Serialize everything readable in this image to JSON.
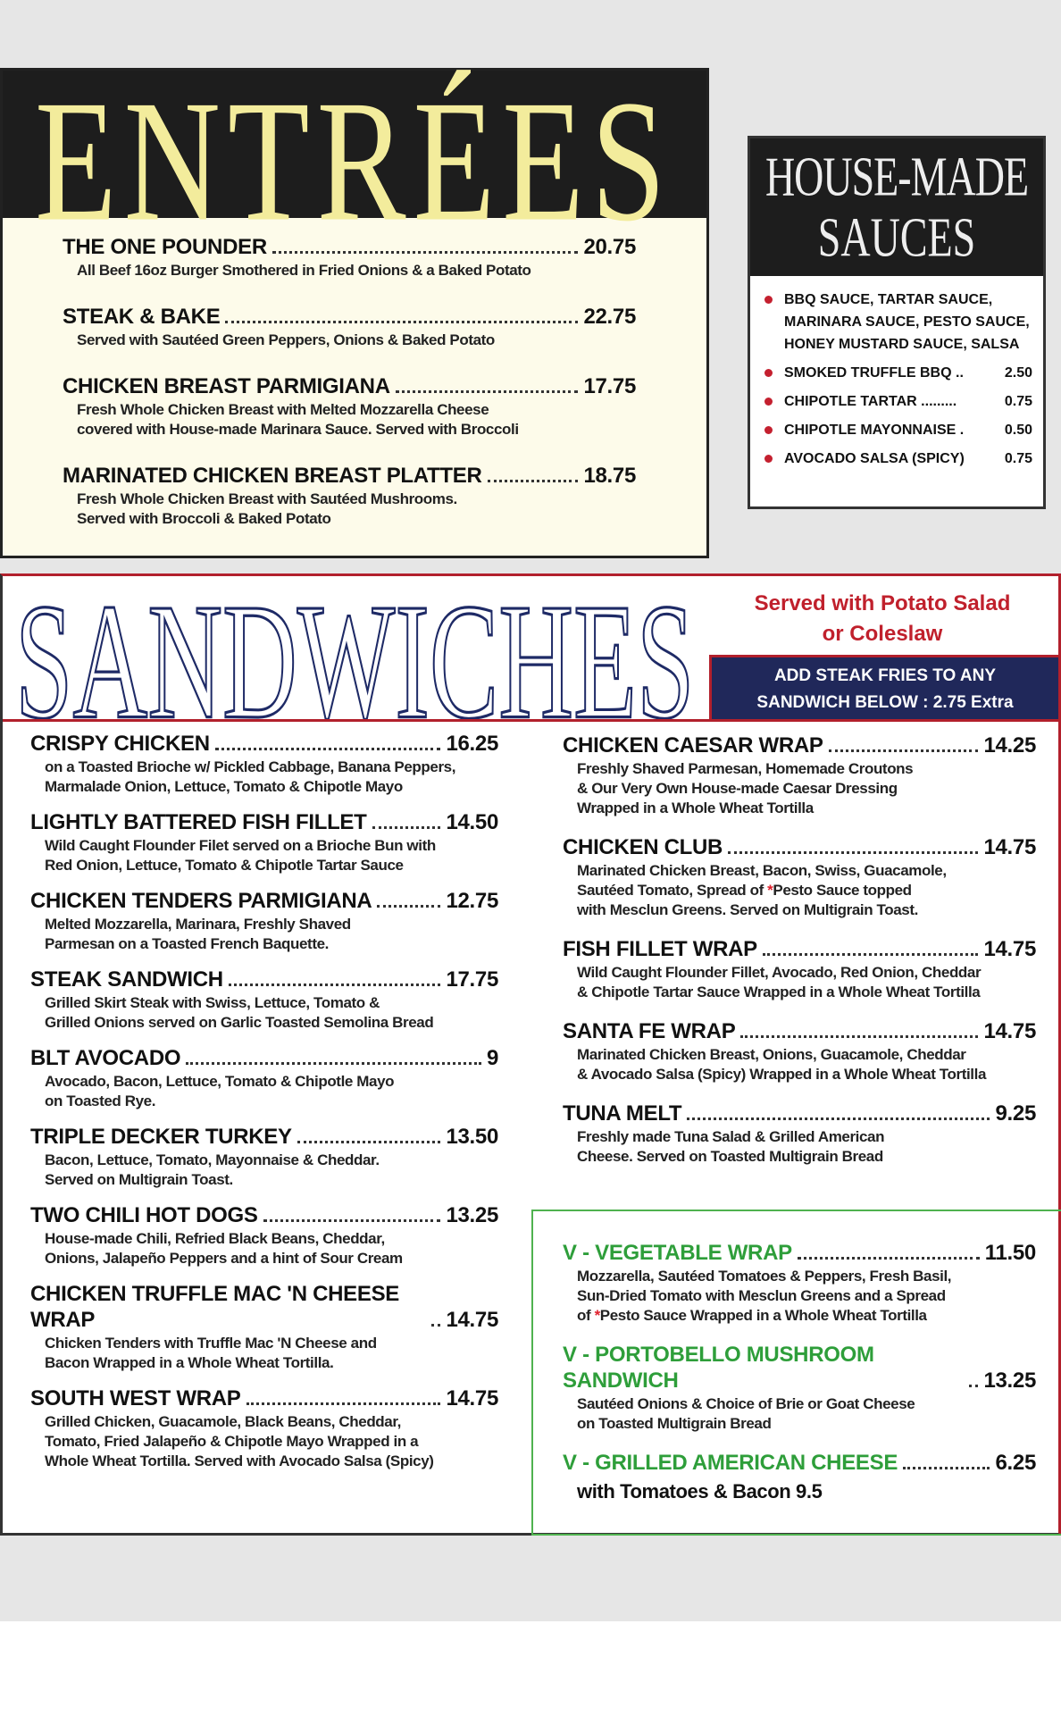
{
  "entrees": {
    "title": "ENTRÉES",
    "items": [
      {
        "name": "THE ONE POUNDER",
        "price": "20.75",
        "desc": [
          "All Beef 16oz Burger Smothered in Fried Onions & a Baked Potato"
        ]
      },
      {
        "name": "STEAK & BAKE",
        "price": "22.75",
        "desc": [
          "Served with Sautéed Green Peppers, Onions & Baked Potato"
        ]
      },
      {
        "name": "CHICKEN BREAST PARMIGIANA",
        "price": "17.75",
        "desc": [
          "Fresh Whole Chicken Breast with Melted Mozzarella Cheese",
          "covered with House-made Marinara Sauce. Served with Broccoli"
        ]
      },
      {
        "name": "MARINATED CHICKEN BREAST PLATTER",
        "price": "18.75",
        "desc": [
          "Fresh Whole Chicken Breast with Sautéed Mushrooms.",
          "Served with Broccoli & Baked Potato"
        ]
      }
    ]
  },
  "sauces": {
    "title_line1": "HOUSE-MADE",
    "title_line2": "SAUCES",
    "list_lines": [
      "BBQ SAUCE, TARTAR SAUCE,",
      "MARINARA SAUCE, PESTO SAUCE,",
      "HONEY MUSTARD SAUCE, SALSA"
    ],
    "items": [
      {
        "name": "SMOKED TRUFFLE BBQ ..",
        "price": "2.50"
      },
      {
        "name": "CHIPOTLE TARTAR .........",
        "price": "0.75"
      },
      {
        "name": "CHIPOTLE MAYONNAISE .",
        "price": "0.50"
      },
      {
        "name": "AVOCADO SALSA (SPICY)",
        "price": "0.75"
      }
    ],
    "bullet_color": "#c4202f"
  },
  "sandwiches": {
    "title": "SANDWICHES",
    "served_line1": "Served with Potato Salad",
    "served_line2": "or Coleslaw",
    "fries_line1": "ADD STEAK FRIES TO ANY",
    "fries_line2": "SANDWICH BELOW : 2.75 Extra",
    "left": [
      {
        "name": "CRISPY CHICKEN",
        "price": "16.25",
        "desc": [
          "on a Toasted Brioche w/ Pickled Cabbage, Banana Peppers,",
          "Marmalade Onion, Lettuce, Tomato & Chipotle Mayo"
        ]
      },
      {
        "name": "LIGHTLY BATTERED FISH FILLET",
        "price": "14.50",
        "desc": [
          "Wild Caught Flounder Filet served on a Brioche Bun with",
          "Red Onion, Lettuce, Tomato & Chipotle Tartar Sauce"
        ]
      },
      {
        "name": "CHICKEN TENDERS PARMIGIANA",
        "price": "12.75",
        "desc": [
          "Melted Mozzarella, Marinara, Freshly Shaved",
          "Parmesan on a Toasted French Baquette."
        ]
      },
      {
        "name": "STEAK SANDWICH",
        "price": "17.75",
        "desc": [
          "Grilled Skirt Steak with Swiss, Lettuce, Tomato &",
          "Grilled Onions served on Garlic Toasted Semolina Bread"
        ]
      },
      {
        "name": "BLT AVOCADO",
        "price": "9",
        "desc": [
          "Avocado, Bacon, Lettuce, Tomato & Chipotle Mayo",
          "on Toasted Rye."
        ]
      },
      {
        "name": "TRIPLE DECKER TURKEY",
        "price": "13.50",
        "desc": [
          "Bacon, Lettuce, Tomato, Mayonnaise & Cheddar.",
          "Served on Multigrain Toast."
        ]
      },
      {
        "name": "TWO CHILI HOT DOGS",
        "price": "13.25",
        "desc": [
          "House-made Chili, Refried Black Beans, Cheddar,",
          "Onions, Jalapeño Peppers and a hint of Sour Cream"
        ]
      },
      {
        "name": "CHICKEN TRUFFLE MAC 'N CHEESE WRAP",
        "price": "14.75",
        "desc": [
          "Chicken Tenders with Truffle Mac 'N Cheese and",
          "Bacon Wrapped in a Whole Wheat Tortilla."
        ]
      },
      {
        "name": "SOUTH WEST WRAP",
        "price": "14.75",
        "desc": [
          "Grilled Chicken, Guacamole, Black Beans, Cheddar,",
          "Tomato, Fried Jalapeño & Chipotle Mayo Wrapped in a",
          "Whole Wheat Tortilla. Served with Avocado Salsa (Spicy)"
        ]
      }
    ],
    "right": [
      {
        "name": "CHICKEN CAESAR WRAP",
        "price": "14.25",
        "desc": [
          "Freshly Shaved Parmesan, Homemade Croutons",
          "& Our Very Own House-made Caesar Dressing",
          "Wrapped in a Whole Wheat Tortilla"
        ]
      },
      {
        "name": "CHICKEN CLUB",
        "price": "14.75",
        "desc": [
          "Marinated Chicken Breast, Bacon, Swiss, Guacamole,",
          "Sautéed Tomato, Spread of *Pesto Sauce topped",
          "with Mesclun Greens. Served on Multigrain Toast."
        ]
      },
      {
        "name": "FISH FILLET WRAP",
        "price": "14.75",
        "desc": [
          "Wild Caught Flounder Fillet, Avocado, Red Onion, Cheddar",
          "& Chipotle Tartar Sauce Wrapped in a Whole Wheat Tortilla"
        ]
      },
      {
        "name": "SANTA FE WRAP",
        "price": "14.75",
        "desc": [
          "Marinated Chicken Breast, Onions, Guacamole, Cheddar",
          "& Avocado Salsa (Spicy) Wrapped in a Whole Wheat Tortilla"
        ]
      },
      {
        "name": "TUNA MELT",
        "price": "9.25",
        "desc": [
          "Freshly made Tuna Salad & Grilled American",
          "Cheese. Served on Toasted Multigrain Bread"
        ]
      }
    ],
    "vegetarian": [
      {
        "name": "V - VEGETABLE WRAP",
        "price": "11.50",
        "desc": [
          "Mozzarella, Sautéed Tomatoes & Peppers, Fresh Basil,",
          "Sun-Dried Tomato with Mesclun Greens and a Spread",
          "of *Pesto Sauce Wrapped in a Whole Wheat Tortilla"
        ]
      },
      {
        "name": "V - PORTOBELLO MUSHROOM SANDWICH",
        "price": "13.25",
        "desc": [
          "Sautéed Onions & Choice of Brie or Goat Cheese",
          "on Toasted Multigrain Bread"
        ]
      },
      {
        "name": "V - GRILLED AMERICAN CHEESE",
        "price": "6.25",
        "extra": "with Tomatoes & Bacon  9.5"
      }
    ]
  },
  "colors": {
    "entree_title": "#f3ec9c",
    "sandwich_title": "#1e2a66",
    "accent_red": "#c0202c",
    "navy": "#20285a",
    "veg_green": "#2e9e3a",
    "cream": "#fdfbea"
  }
}
